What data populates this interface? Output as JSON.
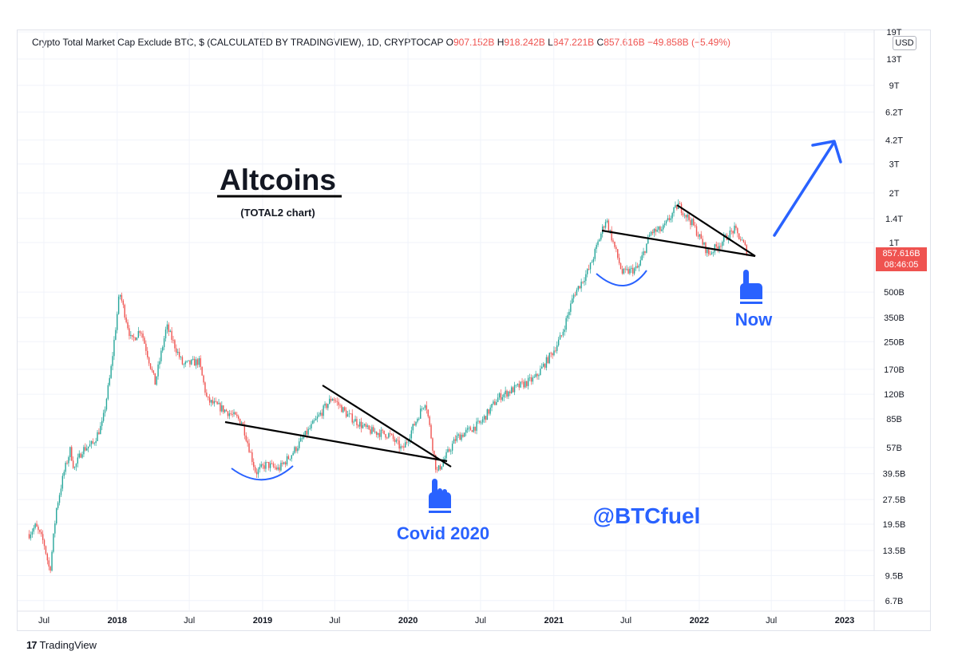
{
  "header": {
    "symbol": "Crypto Total Market Cap Exclude BTC, $ (CALCULATED BY TRADINGVIEW), 1D, CRYPTOCAP",
    "open_label": "O",
    "open": "907.152B",
    "high_label": "H",
    "high": "918.242B",
    "low_label": "L",
    "low": "847.221B",
    "close_label": "C",
    "close": "857.616B",
    "change": "−49.858B (−5.49%)"
  },
  "currency": "USD",
  "price_tag": {
    "price": "857.616B",
    "countdown": "08:46:05"
  },
  "annotations": {
    "title": "Altcoins",
    "subtitle": "(TOTAL2 chart)",
    "covid_label": "Covid 2020",
    "now_label": "Now",
    "handle": "@BTCfuel",
    "accent_color": "#2962ff",
    "hand_icon": "pointing-hand-icon",
    "arrow_icon": "up-right-arrow-icon"
  },
  "footer": {
    "brand": "TradingView",
    "logo_icon": "tradingview-logo-icon"
  },
  "chart_data": {
    "type": "candlestick",
    "scale": "log",
    "colors": {
      "up": "#26a69a",
      "down": "#ef5350",
      "annotation": "#2962ff",
      "trendline": "#000000"
    },
    "x_ticks": [
      "Jul",
      "2018",
      "Jul",
      "2019",
      "Jul",
      "2020",
      "Jul",
      "2021",
      "Jul",
      "2022",
      "Jul",
      "2023"
    ],
    "y_ticks": [
      "19T",
      "13T",
      "9T",
      "6.2T",
      "4.2T",
      "3T",
      "2T",
      "1.4T",
      "1T",
      "500B",
      "350B",
      "250B",
      "170B",
      "120B",
      "85B",
      "57B",
      "39.5B",
      "27.5B",
      "19.5B",
      "13.5B",
      "9.5B",
      "6.7B"
    ],
    "y_tick_values_billions": [
      19000,
      13000,
      9000,
      6200,
      4200,
      3000,
      2000,
      1400,
      1000,
      500,
      350,
      250,
      170,
      120,
      85,
      57,
      39.5,
      27.5,
      19.5,
      13.5,
      9.5,
      6.7
    ],
    "x_range": [
      "2017-05-25",
      "2023-03-01"
    ],
    "series_approx_close_billions": [
      [
        "2017-05-25",
        17
      ],
      [
        "2017-06-10",
        19
      ],
      [
        "2017-07-01",
        15
      ],
      [
        "2017-07-16",
        10
      ],
      [
        "2017-08-01",
        24
      ],
      [
        "2017-08-20",
        40
      ],
      [
        "2017-09-05",
        55
      ],
      [
        "2017-09-15",
        42
      ],
      [
        "2017-10-05",
        55
      ],
      [
        "2017-11-01",
        60
      ],
      [
        "2017-11-25",
        80
      ],
      [
        "2017-12-15",
        160
      ],
      [
        "2018-01-07",
        500
      ],
      [
        "2018-02-06",
        250
      ],
      [
        "2018-03-01",
        300
      ],
      [
        "2018-04-06",
        140
      ],
      [
        "2018-05-05",
        310
      ],
      [
        "2018-06-15",
        180
      ],
      [
        "2018-07-25",
        190
      ],
      [
        "2018-08-15",
        110
      ],
      [
        "2018-10-01",
        95
      ],
      [
        "2018-11-10",
        82
      ],
      [
        "2018-12-15",
        40
      ],
      [
        "2019-01-10",
        45
      ],
      [
        "2019-02-10",
        42
      ],
      [
        "2019-03-15",
        52
      ],
      [
        "2019-05-01",
        75
      ],
      [
        "2019-06-25",
        115
      ],
      [
        "2019-08-01",
        90
      ],
      [
        "2019-09-25",
        72
      ],
      [
        "2019-11-15",
        68
      ],
      [
        "2019-12-18",
        55
      ],
      [
        "2020-02-14",
        110
      ],
      [
        "2020-03-13",
        40
      ],
      [
        "2020-05-01",
        65
      ],
      [
        "2020-07-01",
        80
      ],
      [
        "2020-08-15",
        115
      ],
      [
        "2020-09-25",
        130
      ],
      [
        "2020-11-15",
        150
      ],
      [
        "2020-12-31",
        220
      ],
      [
        "2021-01-20",
        270
      ],
      [
        "2021-02-20",
        480
      ],
      [
        "2021-04-01",
        700
      ],
      [
        "2021-05-12",
        1400
      ],
      [
        "2021-06-22",
        650
      ],
      [
        "2021-08-01",
        700
      ],
      [
        "2021-09-01",
        1150
      ],
      [
        "2021-10-01",
        1200
      ],
      [
        "2021-11-09",
        1700
      ],
      [
        "2021-12-15",
        1300
      ],
      [
        "2022-01-24",
        850
      ],
      [
        "2022-02-15",
        950
      ],
      [
        "2022-03-30",
        1200
      ],
      [
        "2022-04-20",
        1000
      ],
      [
        "2022-05-03",
        857.616
      ]
    ]
  }
}
